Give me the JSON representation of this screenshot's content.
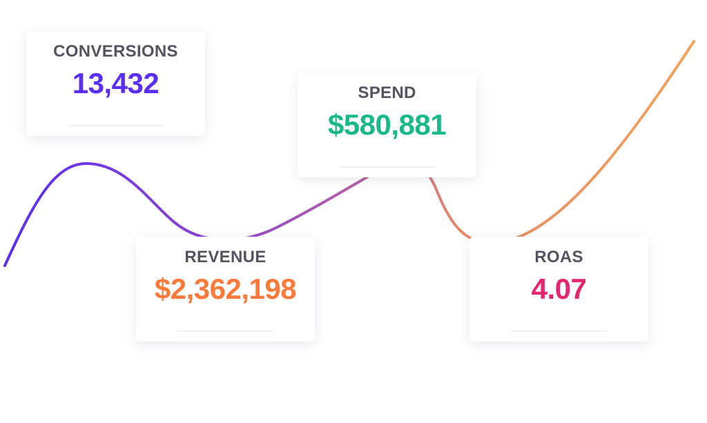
{
  "cards": [
    {
      "label": "CONVERSIONS",
      "value": "13,432"
    },
    {
      "label": "SPEND",
      "value": "$580,881"
    },
    {
      "label": "REVENUE",
      "value": "$2,362,198"
    },
    {
      "label": "ROAS",
      "value": "4.07"
    }
  ]
}
